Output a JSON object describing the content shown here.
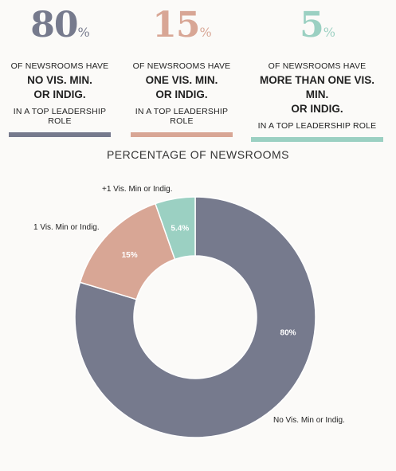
{
  "stats": [
    {
      "number": "80",
      "pct_sign": "%",
      "pre": "OF NEWSROOMS HAVE",
      "bold1": "NO VIS. MIN.",
      "bold2": "OR INDIG.",
      "post": "IN A TOP LEADERSHIP ROLE",
      "color": "#767a8d"
    },
    {
      "number": "15",
      "pct_sign": "%",
      "pre": "OF NEWSROOMS HAVE",
      "bold1": "ONE VIS. MIN.",
      "bold2": "OR INDIG.",
      "post": "IN A TOP LEADERSHIP ROLE",
      "color": "#d8a695"
    },
    {
      "number": "5",
      "pct_sign": "%",
      "pre": "OF NEWSROOMS HAVE",
      "bold1": "MORE THAN ONE VIS. MIN.",
      "bold2": "OR INDIG.",
      "post": "IN A TOP LEADERSHIP ROLE",
      "color": "#9bd0c2"
    }
  ],
  "chart_data": {
    "type": "pie",
    "title": "PERCENTAGE OF NEWSROOMS",
    "categories": [
      "No Vis. Min or Indig.",
      "1 Vis. Min or Indig.",
      "+1 Vis. Min or Indig."
    ],
    "values": [
      80,
      15,
      5.4
    ],
    "value_labels": [
      "80%",
      "15%",
      "5.4%"
    ],
    "colors": [
      "#767a8d",
      "#d8a695",
      "#9bd0c2"
    ],
    "donut": true,
    "legend": "none"
  }
}
